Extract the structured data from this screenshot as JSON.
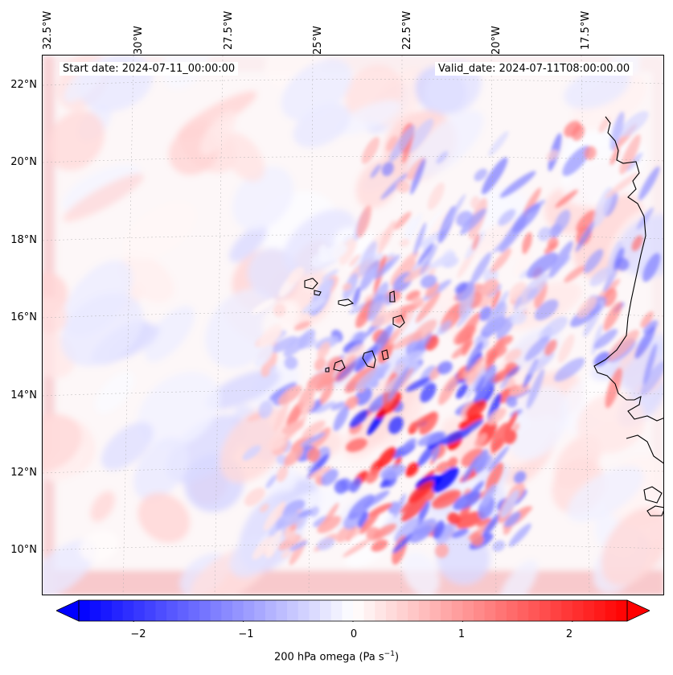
{
  "map": {
    "projection": "lambert-conformal",
    "extent": {
      "lon_min": -33.0,
      "lon_max": -16.0,
      "lat_min": 8.9,
      "lat_max": 22.8
    },
    "lon_labels": [
      "32.5°W",
      "30°W",
      "27.5°W",
      "25°W",
      "22.5°W",
      "20°W",
      "17.5°W"
    ],
    "lat_labels": [
      "22°N",
      "20°N",
      "18°N",
      "16°N",
      "14°N",
      "12°N",
      "10°N"
    ],
    "gridlines": true,
    "coastlines": true,
    "field": "200 hPa omega",
    "colormap": "bwr",
    "color_min": "#0000ff",
    "color_mid": "#ffffff",
    "color_max": "#ff0000"
  },
  "annotations": {
    "start_date": "Start date: 2024-07-11_00:00:00",
    "valid_date": "Valid_date: 2024-07-11T08:00:00.00"
  },
  "colorbar": {
    "vmin": -2.5,
    "vmax": 2.5,
    "extend": "both",
    "ticks": [
      "−2",
      "−1",
      "0",
      "1",
      "2"
    ],
    "tick_values": [
      -2,
      -1,
      0,
      1,
      2
    ],
    "label": "200 hPa omega (Pa s",
    "label_sup": "−1",
    "label_end": ")"
  }
}
